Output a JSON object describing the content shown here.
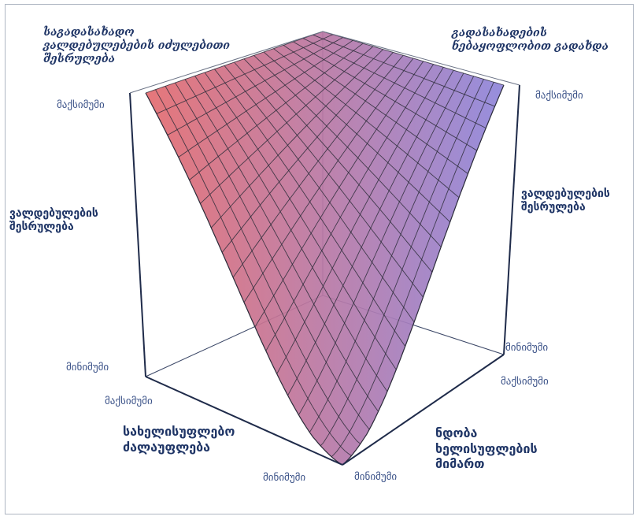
{
  "labels": {
    "top_left": "საგადასახადო\nვალდებულებების იძულებითი\nშესრულება",
    "top_right": "გადასახადების\nნებაყოფლობით გადახდა",
    "mid_left": "ვალდებულების\nშესრულება",
    "mid_right": "ვალდებულების\nშესრულება",
    "bottom_left": "სახელისუფლებო\nძალაუფლება",
    "bottom_right": "ნდობა\nხელისუფლების\nმიმართ"
  },
  "ticks": {
    "z_max_left": "მაქსიმუმი",
    "z_max_right": "მაქსიმუმი",
    "z_min_left": "მინიმუმი",
    "z_min_right": "მინიმუმი",
    "power_max": "მაქსიმუმი",
    "power_min": "მინიმუმი",
    "trust_max": "მაქსიმუმი",
    "trust_min": "მინიმუმი"
  },
  "colors": {
    "surface_left": "#e86a6a",
    "surface_right": "#8a86df",
    "mesh_lines": "#2d2d3a",
    "box_edges": "#1f2b4a",
    "text": "#1f3566"
  }
}
